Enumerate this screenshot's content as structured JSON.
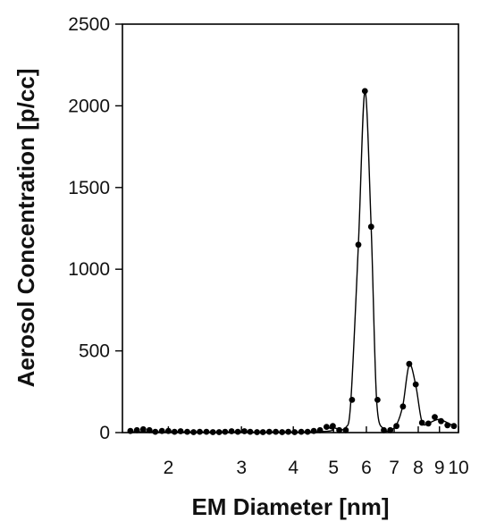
{
  "chart_data": {
    "type": "scatter",
    "xlabel": "EM Diameter [nm]",
    "ylabel": "Aerosol Concentration [p/cc]",
    "x_scale": "log",
    "xlim": [
      1.55,
      10
    ],
    "ylim": [
      0,
      2500
    ],
    "x_tick_values": [
      2,
      3,
      4,
      5,
      6,
      7,
      8,
      9,
      10
    ],
    "x_tick_labels": [
      "2",
      "3",
      "4",
      "5",
      "6",
      "7",
      "8",
      "9",
      "10"
    ],
    "y_tick_values": [
      0,
      500,
      1000,
      1500,
      2000,
      2500
    ],
    "y_tick_labels": [
      "0",
      "500",
      "1000",
      "1500",
      "2000",
      "2500"
    ],
    "grid": false,
    "marker_color": "#000000",
    "line_color": "#000000",
    "series": [
      {
        "x": [
          1.62,
          1.68,
          1.74,
          1.8,
          1.86,
          1.93,
          2.0,
          2.07,
          2.14,
          2.22,
          2.3,
          2.38,
          2.47,
          2.56,
          2.65,
          2.74,
          2.84,
          2.94,
          3.05,
          3.15,
          3.27,
          3.38,
          3.5,
          3.63,
          3.76,
          3.89,
          4.03,
          4.18,
          4.33,
          4.48,
          4.64,
          4.81,
          4.98,
          5.16,
          5.35,
          5.54,
          5.74,
          5.95,
          6.16,
          6.38,
          6.61,
          6.85,
          7.09,
          7.35,
          7.61,
          7.89,
          8.17,
          8.46,
          8.77,
          9.08,
          9.41,
          9.75
        ],
        "y": [
          10,
          15,
          20,
          15,
          5,
          10,
          10,
          5,
          8,
          5,
          3,
          5,
          5,
          3,
          3,
          5,
          8,
          5,
          8,
          5,
          3,
          3,
          5,
          5,
          3,
          5,
          3,
          5,
          5,
          10,
          15,
          35,
          40,
          15,
          15,
          200,
          1150,
          2090,
          1260,
          200,
          15,
          15,
          40,
          160,
          420,
          295,
          60,
          55,
          95,
          70,
          45,
          40
        ]
      },
      {
        "curve_x": [
          1.62,
          4.5,
          4.9,
          5.2,
          5.35,
          5.5,
          5.74,
          5.95,
          6.16,
          6.35,
          6.6,
          6.85,
          7.1,
          7.35,
          7.61,
          7.89,
          8.17,
          8.5,
          9.0,
          9.75
        ],
        "curve_y": [
          5,
          5,
          30,
          20,
          30,
          180,
          1150,
          2090,
          1260,
          200,
          20,
          15,
          50,
          170,
          415,
          290,
          65,
          60,
          80,
          40
        ]
      }
    ]
  }
}
